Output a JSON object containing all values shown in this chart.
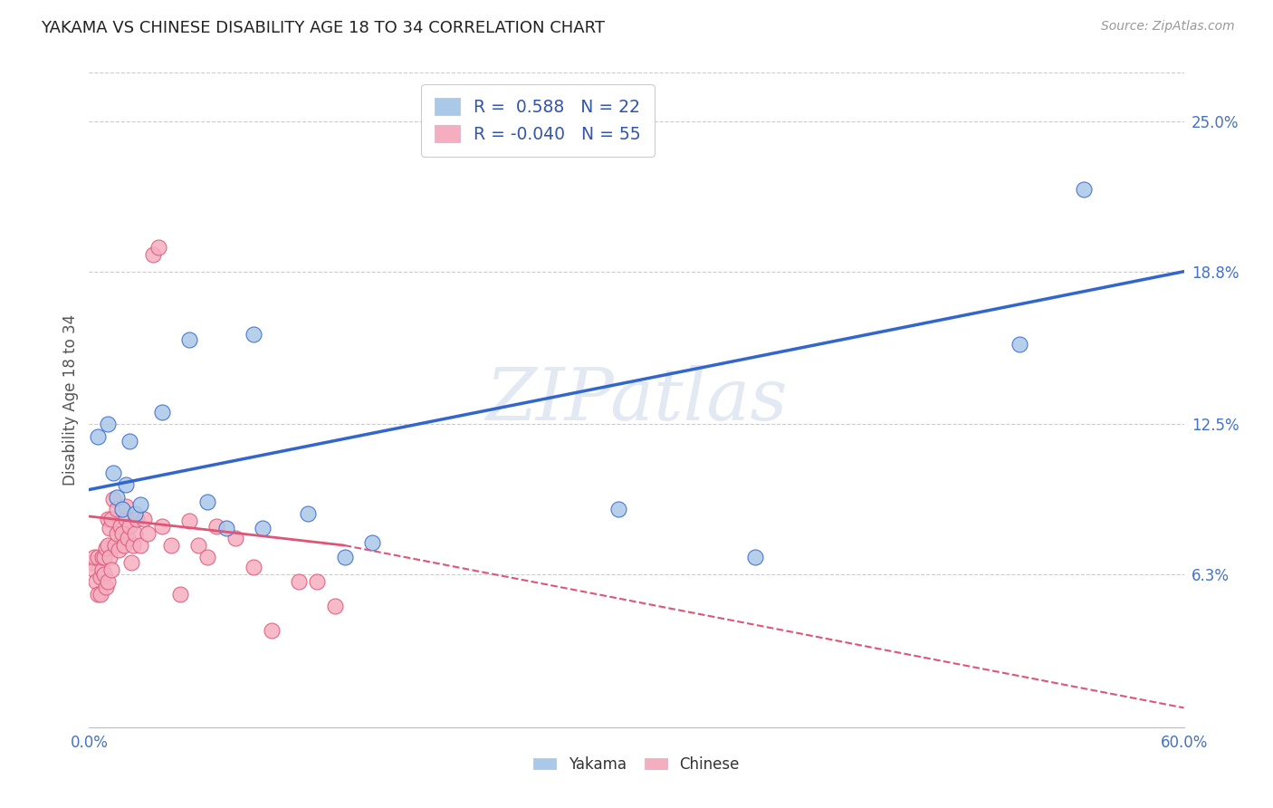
{
  "title": "YAKAMA VS CHINESE DISABILITY AGE 18 TO 34 CORRELATION CHART",
  "source": "Source: ZipAtlas.com",
  "ylabel": "Disability Age 18 to 34",
  "xlim": [
    0.0,
    0.6
  ],
  "ylim": [
    0.0,
    0.27
  ],
  "xticks": [
    0.0,
    0.1,
    0.2,
    0.3,
    0.4,
    0.5,
    0.6
  ],
  "xticklabels": [
    "0.0%",
    "",
    "",
    "",
    "",
    "",
    "60.0%"
  ],
  "ytick_labels_right": [
    "25.0%",
    "18.8%",
    "12.5%",
    "6.3%"
  ],
  "ytick_vals_right": [
    0.25,
    0.188,
    0.125,
    0.063
  ],
  "background_color": "#ffffff",
  "watermark": "ZIPatlas",
  "yakama_R": 0.588,
  "yakama_N": 22,
  "chinese_R": -0.04,
  "chinese_N": 55,
  "yakama_color": "#aac8e8",
  "chinese_color": "#f5aec0",
  "trend_yakama_color": "#3366cc",
  "trend_chinese_color": "#dd5577",
  "yakama_x": [
    0.005,
    0.01,
    0.013,
    0.015,
    0.018,
    0.02,
    0.022,
    0.025,
    0.028,
    0.04,
    0.055,
    0.065,
    0.075,
    0.09,
    0.095,
    0.12,
    0.14,
    0.155,
    0.29,
    0.365,
    0.51,
    0.545
  ],
  "yakama_y": [
    0.12,
    0.125,
    0.105,
    0.095,
    0.09,
    0.1,
    0.118,
    0.088,
    0.092,
    0.13,
    0.16,
    0.093,
    0.082,
    0.162,
    0.082,
    0.088,
    0.07,
    0.076,
    0.09,
    0.07,
    0.158,
    0.222
  ],
  "chinese_x": [
    0.002,
    0.003,
    0.003,
    0.004,
    0.005,
    0.005,
    0.006,
    0.006,
    0.007,
    0.007,
    0.008,
    0.008,
    0.009,
    0.009,
    0.01,
    0.01,
    0.01,
    0.011,
    0.011,
    0.012,
    0.012,
    0.013,
    0.014,
    0.015,
    0.015,
    0.016,
    0.017,
    0.018,
    0.019,
    0.02,
    0.02,
    0.021,
    0.022,
    0.023,
    0.024,
    0.025,
    0.026,
    0.028,
    0.03,
    0.032,
    0.035,
    0.038,
    0.04,
    0.045,
    0.05,
    0.055,
    0.06,
    0.065,
    0.07,
    0.08,
    0.09,
    0.1,
    0.115,
    0.125,
    0.135
  ],
  "chinese_y": [
    0.068,
    0.065,
    0.07,
    0.06,
    0.055,
    0.07,
    0.055,
    0.062,
    0.065,
    0.07,
    0.063,
    0.07,
    0.058,
    0.074,
    0.06,
    0.075,
    0.086,
    0.07,
    0.082,
    0.065,
    0.086,
    0.094,
    0.075,
    0.08,
    0.09,
    0.073,
    0.083,
    0.08,
    0.075,
    0.086,
    0.091,
    0.078,
    0.083,
    0.068,
    0.075,
    0.08,
    0.086,
    0.075,
    0.086,
    0.08,
    0.195,
    0.198,
    0.083,
    0.075,
    0.055,
    0.085,
    0.075,
    0.07,
    0.083,
    0.078,
    0.066,
    0.04,
    0.06,
    0.06,
    0.05
  ],
  "trend_blue_x0": 0.0,
  "trend_blue_y0": 0.098,
  "trend_blue_x1": 0.6,
  "trend_blue_y1": 0.188,
  "trend_pink_solid_x0": 0.0,
  "trend_pink_solid_y0": 0.087,
  "trend_pink_solid_x1": 0.14,
  "trend_pink_solid_y1": 0.075,
  "trend_pink_dash_x0": 0.14,
  "trend_pink_dash_y0": 0.075,
  "trend_pink_dash_x1": 0.6,
  "trend_pink_dash_y1": 0.008
}
